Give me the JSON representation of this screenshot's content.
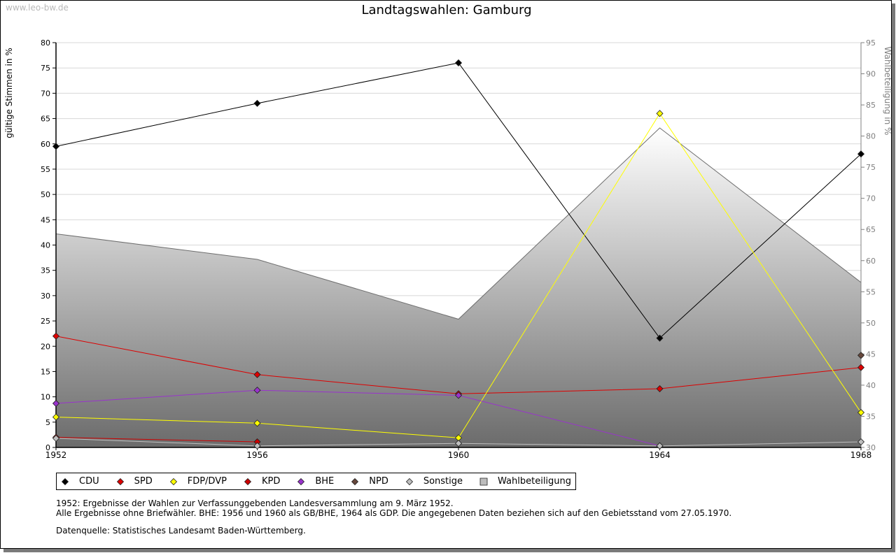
{
  "watermark": "www.leo-bw.de",
  "chart_data": {
    "type": "line",
    "title": "Landtagswahlen: Gamburg",
    "ylabel": "gültige Stimmen in %",
    "y2label": "Wahlbeteiligung in %",
    "ylim": [
      0,
      80
    ],
    "y2lim": [
      30,
      95
    ],
    "yticks": [
      0,
      5,
      10,
      15,
      20,
      25,
      30,
      35,
      40,
      45,
      50,
      55,
      60,
      65,
      70,
      75,
      80
    ],
    "y2ticks": [
      30,
      35,
      40,
      45,
      50,
      55,
      60,
      65,
      70,
      75,
      80,
      85,
      90,
      95
    ],
    "x": [
      "1952",
      "1956",
      "1960",
      "1964",
      "1968"
    ],
    "grid": true,
    "legend_position": "bottom",
    "series": [
      {
        "name": "CDU",
        "color": "#000000",
        "values": [
          59.5,
          68.0,
          76.0,
          21.6,
          58.0
        ]
      },
      {
        "name": "SPD",
        "color": "#dd0000",
        "values": [
          22.0,
          14.4,
          10.6,
          11.6,
          15.8
        ]
      },
      {
        "name": "FDP/DVP",
        "color": "#ffff00",
        "values": [
          6.0,
          4.8,
          1.9,
          66.0,
          6.9
        ]
      },
      {
        "name": "KPD",
        "color": "#cc0000",
        "values": [
          2.0,
          1.1,
          null,
          null,
          null
        ]
      },
      {
        "name": "BHE",
        "color": "#9933cc",
        "values": [
          8.7,
          11.3,
          10.3,
          0.3,
          null
        ]
      },
      {
        "name": "NPD",
        "color": "#66473b",
        "values": [
          null,
          null,
          null,
          null,
          18.2
        ]
      },
      {
        "name": "Sonstige",
        "color": "#bfbfbf",
        "values": [
          1.8,
          0.3,
          0.8,
          0.3,
          1.1
        ]
      }
    ],
    "turnout": {
      "name": "Wahlbeteiligung",
      "axis": "right",
      "values": [
        64.3,
        60.2,
        50.6,
        81.3,
        56.5
      ]
    }
  },
  "notes": [
    "1952: Ergebnisse der Wahlen zur Verfassunggebenden Landesversammlung am 9. März 1952.",
    "Alle Ergebnisse ohne Briefwähler. BHE: 1956 und 1960 als GB/BHE, 1964 als GDP. Die angegebenen Daten beziehen sich auf den Gebietsstand vom 27.05.1970."
  ],
  "source": "Datenquelle: Statistisches Landesamt Baden-Württemberg."
}
